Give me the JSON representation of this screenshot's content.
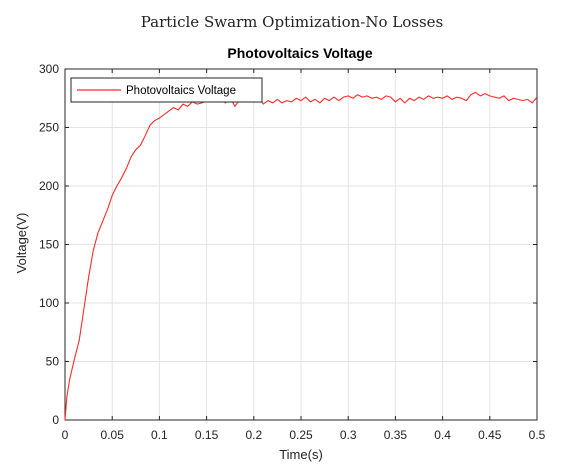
{
  "figure_title": "Particle Swarm Optimization-No Losses",
  "chart_data": {
    "type": "line",
    "title": "Photovoltaics Voltage",
    "xlabel": "Time(s)",
    "ylabel": "Voltage(V)",
    "xlim": [
      0,
      0.5
    ],
    "ylim": [
      0,
      300
    ],
    "xticks": [
      "0",
      "0.05",
      "0.1",
      "0.15",
      "0.2",
      "0.25",
      "0.3",
      "0.35",
      "0.4",
      "0.45",
      "0.5"
    ],
    "yticks": [
      "0",
      "50",
      "100",
      "150",
      "200",
      "250",
      "300"
    ],
    "grid": true,
    "legend_position": "top-left",
    "series": [
      {
        "name": "Photovoltaics Voltage",
        "color": "#ff2a2a",
        "x": [
          0,
          0.002,
          0.005,
          0.01,
          0.015,
          0.02,
          0.025,
          0.03,
          0.035,
          0.04,
          0.045,
          0.05,
          0.055,
          0.06,
          0.065,
          0.07,
          0.075,
          0.08,
          0.085,
          0.09,
          0.095,
          0.1,
          0.105,
          0.11,
          0.115,
          0.12,
          0.125,
          0.13,
          0.135,
          0.14,
          0.145,
          0.15,
          0.155,
          0.16,
          0.165,
          0.17,
          0.175,
          0.18,
          0.185,
          0.19,
          0.195,
          0.2,
          0.205,
          0.21,
          0.215,
          0.22,
          0.225,
          0.23,
          0.235,
          0.24,
          0.245,
          0.25,
          0.255,
          0.26,
          0.265,
          0.27,
          0.275,
          0.28,
          0.285,
          0.29,
          0.295,
          0.3,
          0.305,
          0.31,
          0.315,
          0.32,
          0.325,
          0.33,
          0.335,
          0.34,
          0.345,
          0.35,
          0.355,
          0.36,
          0.365,
          0.37,
          0.375,
          0.38,
          0.385,
          0.39,
          0.395,
          0.4,
          0.405,
          0.41,
          0.415,
          0.42,
          0.425,
          0.43,
          0.435,
          0.44,
          0.445,
          0.45,
          0.455,
          0.46,
          0.465,
          0.47,
          0.475,
          0.48,
          0.485,
          0.49,
          0.495,
          0.5
        ],
        "y": [
          0,
          20,
          35,
          52,
          68,
          95,
          122,
          145,
          160,
          170,
          180,
          192,
          200,
          207,
          215,
          225,
          231,
          235,
          243,
          252,
          256,
          258,
          261,
          264,
          267,
          265,
          270,
          268,
          272,
          270,
          271,
          273,
          275,
          272,
          274,
          271,
          276,
          268,
          274,
          272,
          276,
          274,
          276,
          270,
          273,
          271,
          274,
          271,
          273,
          272,
          275,
          273,
          276,
          272,
          274,
          271,
          275,
          273,
          276,
          273,
          276,
          277,
          275,
          278,
          276,
          277,
          275,
          276,
          274,
          277,
          276,
          272,
          275,
          271,
          275,
          273,
          276,
          274,
          277,
          275,
          276,
          275,
          277,
          274,
          276,
          275,
          273,
          278,
          280,
          277,
          279,
          277,
          276,
          275,
          277,
          273,
          275,
          274,
          273,
          274,
          271,
          276
        ]
      }
    ]
  }
}
